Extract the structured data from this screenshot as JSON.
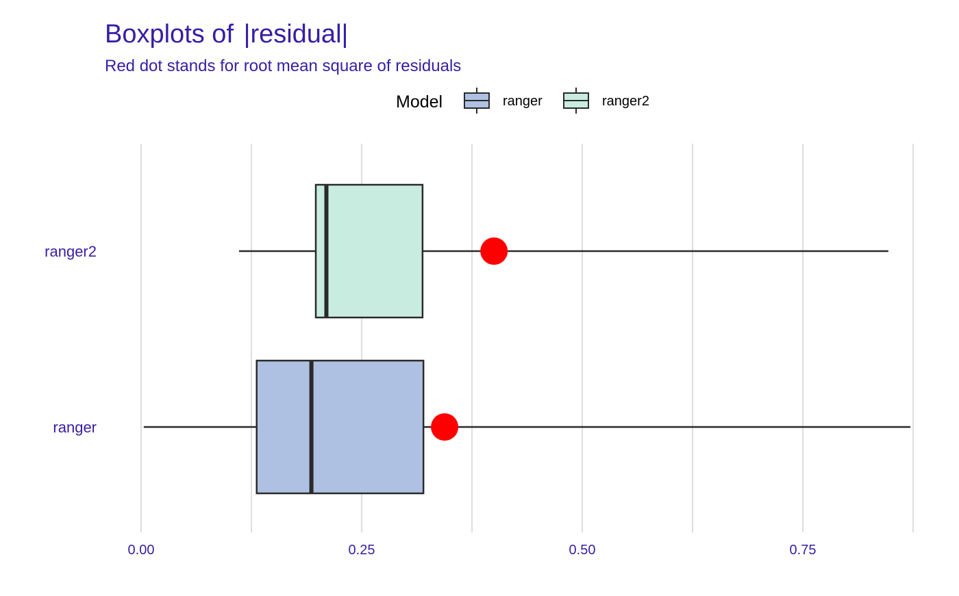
{
  "chart_data": {
    "type": "boxplot",
    "orientation": "horizontal",
    "title_prefix": "Boxplots of ",
    "title_variable": "residual",
    "subtitle": "Red dot stands for root mean square of residuals",
    "legend": {
      "title": "Model",
      "position": "top"
    },
    "xlabel": "",
    "ylabel": "",
    "xlim": [
      0,
      0.88
    ],
    "x_ticks": [
      0.0,
      0.25,
      0.5,
      0.75
    ],
    "x_tick_labels": [
      "0.00",
      "0.25",
      "0.50",
      "0.75"
    ],
    "grid": {
      "vertical": true,
      "horizontal": false
    },
    "series": [
      {
        "name": "ranger",
        "color": "#AEC1E3",
        "whisker_low": 0.003,
        "q1": 0.131,
        "median": 0.193,
        "q3": 0.32,
        "whisker_high": 0.872,
        "rmse": 0.344
      },
      {
        "name": "ranger2",
        "color": "#C8EDE0",
        "whisker_low": 0.111,
        "q1": 0.198,
        "median": 0.21,
        "q3": 0.319,
        "whisker_high": 0.847,
        "rmse": 0.4
      }
    ],
    "category_order": [
      "ranger2",
      "ranger"
    ],
    "rmse_color": "#FF0000",
    "text_color": "#371EA3"
  }
}
